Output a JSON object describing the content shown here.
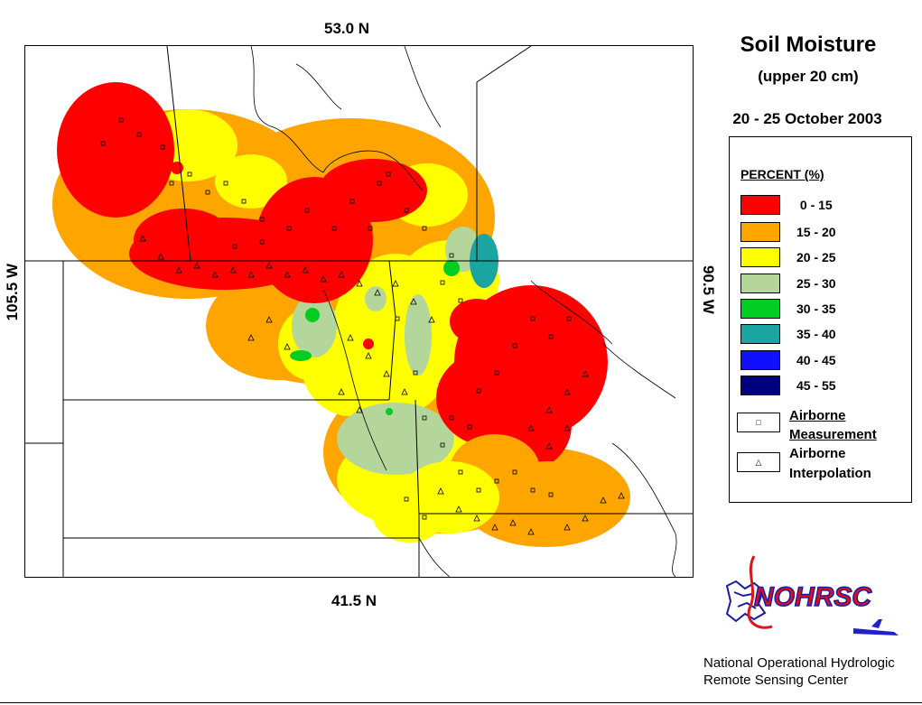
{
  "map": {
    "title": "Soil Moisture",
    "subtitle": "(upper 20 cm)",
    "date_range": "20 - 25 October 2003",
    "coords": {
      "north": "53.0 N",
      "south": "41.5 N",
      "west": "105.5 W",
      "east": "90.5 W"
    }
  },
  "legend": {
    "heading": "PERCENT (%)",
    "classes": [
      {
        "label": " 0 - 15",
        "color": "#ff0000"
      },
      {
        "label": "15 - 20",
        "color": "#ffa500"
      },
      {
        "label": "20 - 25",
        "color": "#ffff00"
      },
      {
        "label": "25 - 30",
        "color": "#b4d69a"
      },
      {
        "label": "30 - 35",
        "color": "#00cc22"
      },
      {
        "label": "35 - 40",
        "color": "#1aa5a0"
      },
      {
        "label": "40 - 45",
        "color": "#1010ff"
      },
      {
        "label": "45 - 55",
        "color": "#000080"
      }
    ],
    "symbols": [
      {
        "glyph": "□",
        "line1": "Airborne",
        "line2": "Measurement"
      },
      {
        "glyph": "△",
        "line1": "Airborne",
        "line2": "Interpolation"
      }
    ]
  },
  "logo": {
    "text": "NOHRSC"
  },
  "org": {
    "line1": "National Operational Hydrologic",
    "line2": "Remote Sensing Center"
  }
}
